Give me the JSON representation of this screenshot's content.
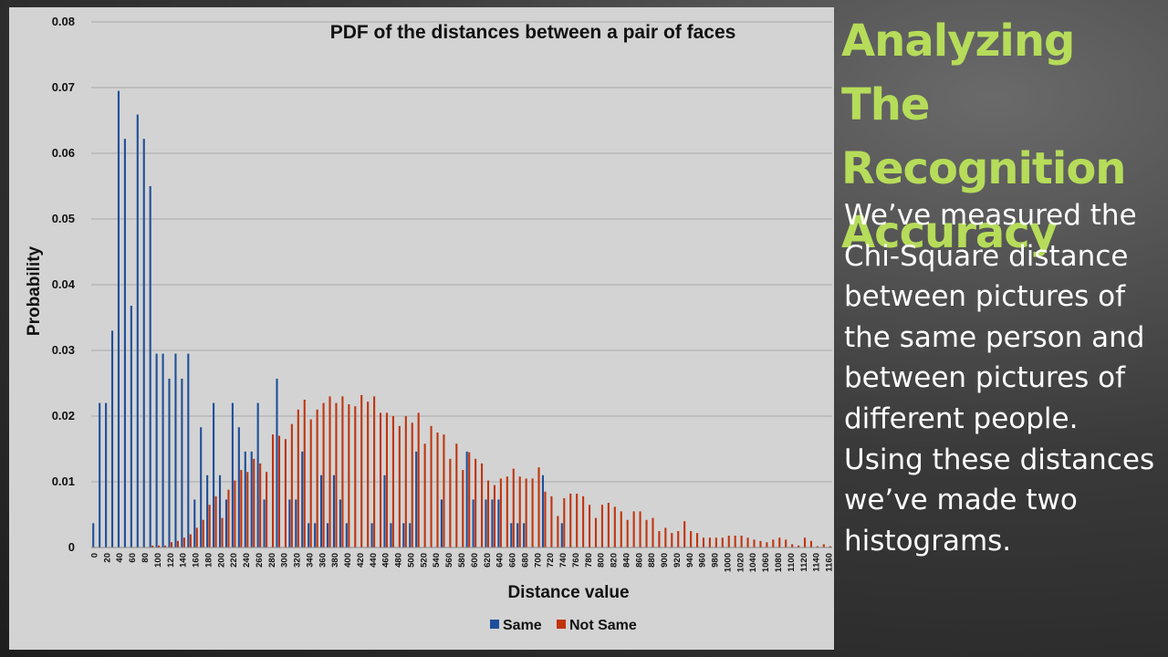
{
  "slide": {
    "title": "Analyzing The Recognition Accuracy",
    "body": "We’ve measured the Chi-Square distance between pictures of the same person and between pictures of different people. Using these distances we’ve made two histograms."
  },
  "chart_data": {
    "type": "bar",
    "title": "PDF of the distances between a pair of faces",
    "xlabel": "Distance value",
    "ylabel": "Probability",
    "ylim": [
      0,
      0.08
    ],
    "yticks": [
      "0",
      "0.01",
      "0.02",
      "0.03",
      "0.04",
      "0.05",
      "0.06",
      "0.07",
      "0.08"
    ],
    "grid": true,
    "legend": "bottom",
    "x": [
      0,
      10,
      20,
      30,
      40,
      50,
      60,
      70,
      80,
      90,
      100,
      110,
      120,
      130,
      140,
      150,
      160,
      170,
      180,
      190,
      200,
      210,
      220,
      230,
      240,
      250,
      260,
      270,
      280,
      290,
      300,
      310,
      320,
      330,
      340,
      350,
      360,
      370,
      380,
      390,
      400,
      410,
      420,
      430,
      440,
      450,
      460,
      470,
      480,
      490,
      500,
      510,
      520,
      530,
      540,
      550,
      560,
      570,
      580,
      590,
      600,
      610,
      620,
      630,
      640,
      650,
      660,
      670,
      680,
      690,
      700,
      710,
      720,
      730,
      740,
      750,
      760,
      770,
      780,
      790,
      800,
      810,
      820,
      830,
      840,
      850,
      860,
      870,
      880,
      890,
      900,
      910,
      920,
      930,
      940,
      950,
      960,
      970,
      980,
      990,
      1000,
      1010,
      1020,
      1030,
      1040,
      1050,
      1060,
      1070,
      1080,
      1090,
      1100,
      1110,
      1120,
      1130,
      1140,
      1150,
      1160
    ],
    "series": [
      {
        "name": "Same",
        "color": "#1f4e99",
        "values": [
          0.0037,
          0.022,
          0.022,
          0.033,
          0.0695,
          0.0622,
          0.0368,
          0.0659,
          0.0622,
          0.055,
          0.0295,
          0.0295,
          0.0257,
          0.0295,
          0.0257,
          0.0295,
          0.0073,
          0.0183,
          0.011,
          0.022,
          0.011,
          0.0073,
          0.022,
          0.0183,
          0.0146,
          0.0146,
          0.022,
          0.0073,
          0,
          0.0257,
          0,
          0.0073,
          0.0073,
          0.0146,
          0.0037,
          0.0037,
          0.011,
          0.0037,
          0.011,
          0.0073,
          0.0037,
          0,
          0,
          0,
          0.0037,
          0,
          0.011,
          0.0037,
          0,
          0.0037,
          0.0037,
          0.0146,
          0,
          0,
          0,
          0.0073,
          0,
          0,
          0,
          0.0146,
          0.0073,
          0,
          0.0073,
          0.0073,
          0.0073,
          0,
          0.0037,
          0.0037,
          0.0037,
          0,
          0,
          0.011,
          0,
          0,
          0.0037,
          0,
          0,
          0,
          0,
          0,
          0,
          0,
          0,
          0,
          0,
          0,
          0,
          0,
          0,
          0,
          0,
          0,
          0,
          0,
          0,
          0,
          0,
          0,
          0,
          0,
          0,
          0,
          0,
          0,
          0,
          0,
          0,
          0,
          0,
          0,
          0,
          0,
          0,
          0,
          0,
          0,
          0
        ]
      },
      {
        "name": "Not Same",
        "color": "#c0340e",
        "values": [
          0,
          0,
          0,
          0,
          0,
          0,
          0,
          0,
          0,
          0.0003,
          0.0003,
          0.0003,
          0.0008,
          0.001,
          0.0015,
          0.002,
          0.003,
          0.0042,
          0.0065,
          0.0078,
          0.0045,
          0.0088,
          0.0102,
          0.0118,
          0.0115,
          0.0135,
          0.0128,
          0.0115,
          0.0172,
          0.017,
          0.0165,
          0.0188,
          0.021,
          0.0225,
          0.0195,
          0.021,
          0.022,
          0.023,
          0.022,
          0.023,
          0.0218,
          0.0215,
          0.0232,
          0.0222,
          0.023,
          0.0205,
          0.0205,
          0.02,
          0.0185,
          0.02,
          0.019,
          0.0205,
          0.0158,
          0.0185,
          0.0175,
          0.0172,
          0.0135,
          0.0158,
          0.0118,
          0.0145,
          0.0135,
          0.0128,
          0.0102,
          0.0095,
          0.0105,
          0.0108,
          0.012,
          0.0108,
          0.0105,
          0.0105,
          0.0122,
          0.0085,
          0.0078,
          0.0048,
          0.0075,
          0.0082,
          0.0082,
          0.0078,
          0.0065,
          0.0045,
          0.0065,
          0.0068,
          0.0062,
          0.0055,
          0.0042,
          0.0055,
          0.0055,
          0.0042,
          0.0045,
          0.0025,
          0.003,
          0.0022,
          0.0025,
          0.004,
          0.0025,
          0.0022,
          0.0015,
          0.0015,
          0.0015,
          0.0015,
          0.0018,
          0.0018,
          0.0018,
          0.0015,
          0.0012,
          0.001,
          0.0008,
          0.0012,
          0.0015,
          0.0012,
          0.0005,
          0.0003,
          0.0015,
          0.001,
          0.0002,
          0.0005,
          0.0002
        ]
      }
    ]
  }
}
